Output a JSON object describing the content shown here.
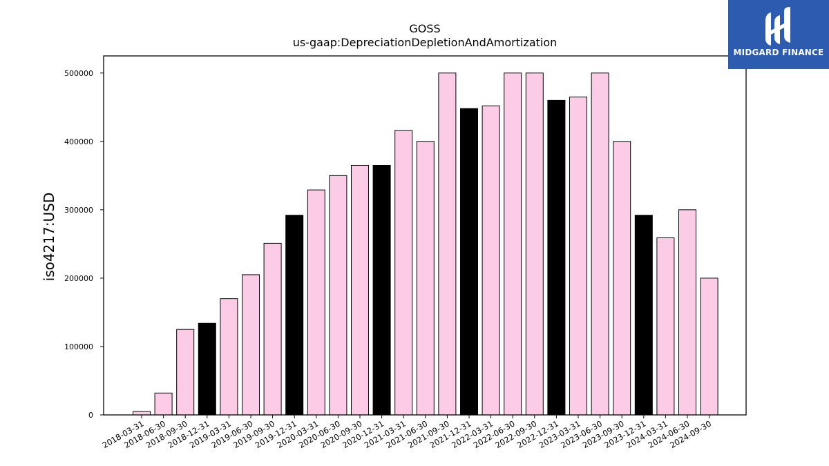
{
  "title": "GOSS",
  "subtitle": "us-gaap:DepreciationDepletionAndAmortization",
  "logo": {
    "text": "MIDGARD FINANCE",
    "background": "#2c5bb0"
  },
  "chart_data": {
    "type": "bar",
    "title": "GOSS",
    "subtitle": "us-gaap:DepreciationDepletionAndAmortization",
    "xlabel": "",
    "ylabel": "iso4217:USD",
    "ylim": [
      0,
      525000
    ],
    "yticks": [
      0,
      100000,
      200000,
      300000,
      400000,
      500000
    ],
    "grid": false,
    "colors": {
      "quarter": "#fccce6",
      "year_end": "#000000",
      "edge": "#000000"
    },
    "categories": [
      "2018-03-31",
      "2018-06-30",
      "2018-09-30",
      "2018-12-31",
      "2019-03-31",
      "2019-06-30",
      "2019-09-30",
      "2019-12-31",
      "2020-03-31",
      "2020-06-30",
      "2020-09-30",
      "2020-12-31",
      "2021-03-31",
      "2021-06-30",
      "2021-09-30",
      "2021-12-31",
      "2022-03-31",
      "2022-06-30",
      "2022-09-30",
      "2022-12-31",
      "2023-03-31",
      "2023-06-30",
      "2023-09-30",
      "2023-12-31",
      "2024-03-31",
      "2024-06-30",
      "2024-09-30"
    ],
    "values": [
      5000,
      32000,
      125000,
      134000,
      170000,
      205000,
      251000,
      292000,
      329000,
      350000,
      365000,
      365000,
      416000,
      400000,
      500000,
      448000,
      452000,
      500000,
      500000,
      460000,
      465000,
      500000,
      400000,
      292000,
      259000,
      300000,
      200000
    ]
  }
}
